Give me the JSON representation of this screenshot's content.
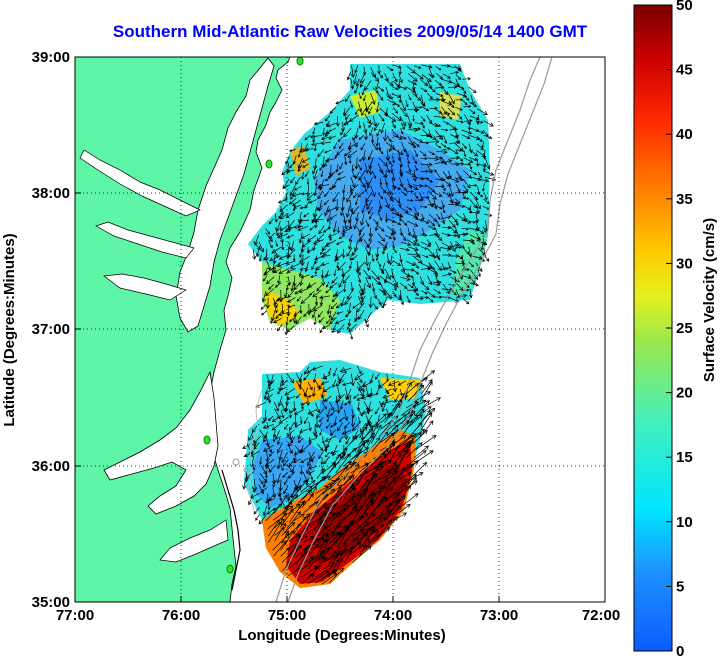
{
  "title": "Southern Mid-Atlantic Raw Velocities 2009/05/14 1400 GMT",
  "x_axis": {
    "label": "Longitude (Degrees:Minutes)",
    "ticks": [
      "77:00",
      "76:00",
      "75:00",
      "74:00",
      "73:00",
      "72:00"
    ]
  },
  "y_axis": {
    "label": "Latitude (Degrees:Minutes)",
    "ticks": [
      "39:00",
      "38:00",
      "37:00",
      "36:00",
      "35:00"
    ]
  },
  "colorbar": {
    "label": "Surface Velocity (cm/s)",
    "ticks": [
      "50",
      "45",
      "40",
      "35",
      "30",
      "25",
      "20",
      "15",
      "10",
      "5",
      "0"
    ],
    "colormap": "jet",
    "range": [
      0,
      50
    ]
  },
  "colors": {
    "land": "#5ef5a6",
    "water": "#ffffff",
    "title": "#0000ff",
    "station": "#33dd33"
  }
}
